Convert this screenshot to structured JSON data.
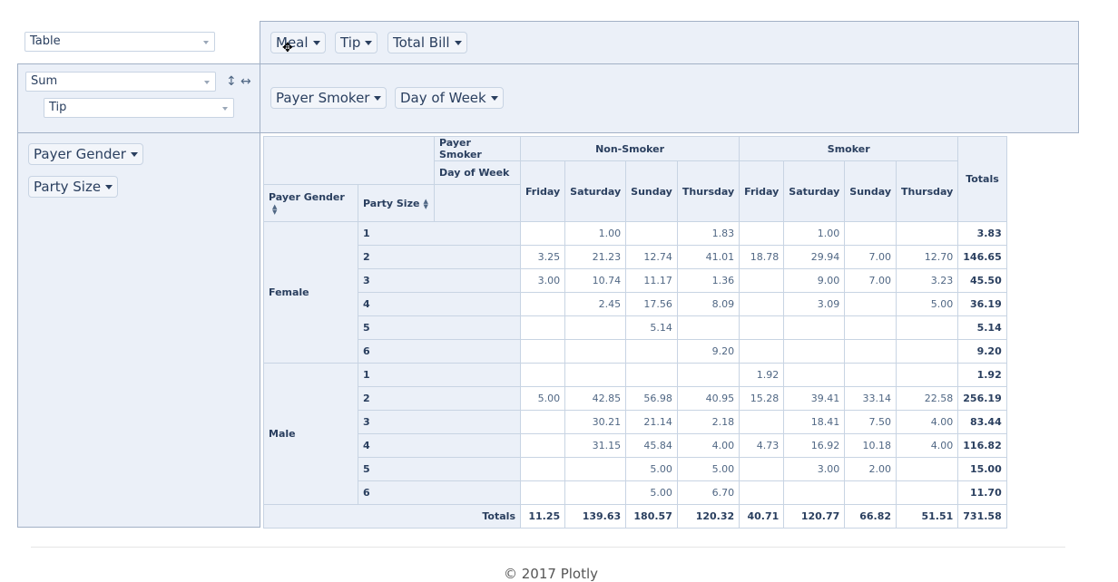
{
  "renderer": {
    "value": "Table"
  },
  "aggregator": {
    "value": "Sum",
    "attribute": "Tip"
  },
  "tools": {
    "vertical_icon": "↕",
    "horizontal_icon": "↔"
  },
  "unused_attrs": [
    {
      "label": "Meal"
    },
    {
      "label": "Tip"
    },
    {
      "label": "Total Bill"
    }
  ],
  "col_attrs": [
    {
      "label": "Payer Smoker"
    },
    {
      "label": "Day of Week"
    }
  ],
  "row_attrs": [
    {
      "label": "Payer Gender"
    },
    {
      "label": "Party Size"
    }
  ],
  "table": {
    "col_attr_labels": [
      "Payer Smoker",
      "Day of Week"
    ],
    "row_attr_labels": [
      "Payer Gender",
      "Party Size"
    ],
    "smoker_groups": [
      "Non-Smoker",
      "Smoker"
    ],
    "days": [
      "Friday",
      "Saturday",
      "Sunday",
      "Thursday",
      "Friday",
      "Saturday",
      "Sunday",
      "Thursday"
    ],
    "totals_label": "Totals",
    "groups": [
      {
        "label": "Female",
        "rows": [
          {
            "size": "1",
            "values": [
              "",
              "1.00",
              "",
              "1.83",
              "",
              "1.00",
              "",
              ""
            ],
            "total": "3.83"
          },
          {
            "size": "2",
            "values": [
              "3.25",
              "21.23",
              "12.74",
              "41.01",
              "18.78",
              "29.94",
              "7.00",
              "12.70"
            ],
            "total": "146.65"
          },
          {
            "size": "3",
            "values": [
              "3.00",
              "10.74",
              "11.17",
              "1.36",
              "",
              "9.00",
              "7.00",
              "3.23"
            ],
            "total": "45.50"
          },
          {
            "size": "4",
            "values": [
              "",
              "2.45",
              "17.56",
              "8.09",
              "",
              "3.09",
              "",
              "5.00"
            ],
            "total": "36.19"
          },
          {
            "size": "5",
            "values": [
              "",
              "",
              "5.14",
              "",
              "",
              "",
              "",
              ""
            ],
            "total": "5.14"
          },
          {
            "size": "6",
            "values": [
              "",
              "",
              "",
              "9.20",
              "",
              "",
              "",
              ""
            ],
            "total": "9.20"
          }
        ]
      },
      {
        "label": "Male",
        "rows": [
          {
            "size": "1",
            "values": [
              "",
              "",
              "",
              "",
              "1.92",
              "",
              "",
              ""
            ],
            "total": "1.92"
          },
          {
            "size": "2",
            "values": [
              "5.00",
              "42.85",
              "56.98",
              "40.95",
              "15.28",
              "39.41",
              "33.14",
              "22.58"
            ],
            "total": "256.19"
          },
          {
            "size": "3",
            "values": [
              "",
              "30.21",
              "21.14",
              "2.18",
              "",
              "18.41",
              "7.50",
              "4.00"
            ],
            "total": "83.44"
          },
          {
            "size": "4",
            "values": [
              "",
              "31.15",
              "45.84",
              "4.00",
              "4.73",
              "16.92",
              "10.18",
              "4.00"
            ],
            "total": "116.82"
          },
          {
            "size": "5",
            "values": [
              "",
              "",
              "5.00",
              "5.00",
              "",
              "3.00",
              "2.00",
              ""
            ],
            "total": "15.00"
          },
          {
            "size": "6",
            "values": [
              "",
              "",
              "5.00",
              "6.70",
              "",
              "",
              "",
              ""
            ],
            "total": "11.70"
          }
        ]
      }
    ],
    "col_totals": [
      "11.25",
      "139.63",
      "180.57",
      "120.32",
      "40.71",
      "120.77",
      "66.82",
      "51.51"
    ],
    "grand_total": "731.58"
  },
  "footer": {
    "text": "© 2017 Plotly"
  }
}
